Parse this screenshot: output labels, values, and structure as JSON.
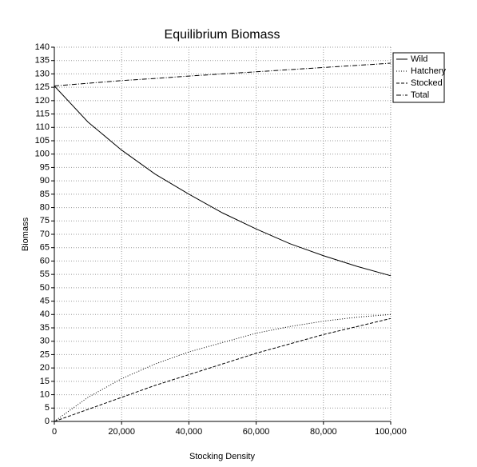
{
  "chart_data": {
    "type": "line",
    "title": "Equilibrium Biomass",
    "x_label": "Stocking Density",
    "y_label": "Biomass",
    "x": [
      0,
      10000,
      20000,
      30000,
      40000,
      50000,
      60000,
      70000,
      80000,
      90000,
      100000
    ],
    "series": [
      {
        "name": "Wild",
        "color": "#000000",
        "line_style": "solid",
        "values": [
          125.5,
          112,
          101.5,
          92.5,
          85,
          78,
          72,
          66.5,
          62,
          58,
          54.5
        ]
      },
      {
        "name": "Hatchery",
        "color": "#000000",
        "line_style": "dotted",
        "values": [
          0,
          9,
          16,
          21.5,
          26,
          29.5,
          33,
          35.5,
          37.5,
          39,
          40
        ]
      },
      {
        "name": "Stocked",
        "color": "#000000",
        "line_style": "dashed",
        "values": [
          0,
          4.5,
          9,
          13.5,
          17.5,
          21.5,
          25.5,
          29,
          32.5,
          35.5,
          38.5
        ]
      },
      {
        "name": "Total",
        "color": "#000000",
        "line_style": "dashdot",
        "values": [
          125.5,
          126.5,
          127.5,
          128.3,
          129.2,
          130,
          130.8,
          131.6,
          132.4,
          133.2,
          134
        ]
      }
    ],
    "xlim": [
      0,
      100000
    ],
    "xticks": [
      0,
      {
        "value": 20000,
        "label": "20,000"
      },
      {
        "value": 40000,
        "label": "40,000"
      },
      {
        "value": 60000,
        "label": "60,000"
      },
      {
        "value": 80000,
        "label": "80,000"
      },
      {
        "value": 100000,
        "label": "100,000"
      }
    ],
    "ylim": [
      0,
      140
    ],
    "yticks": [
      0,
      5,
      10,
      15,
      20,
      25,
      30,
      35,
      40,
      45,
      50,
      55,
      60,
      65,
      70,
      75,
      80,
      85,
      90,
      95,
      100,
      105,
      110,
      115,
      120,
      125,
      130,
      135,
      140
    ],
    "grid": true,
    "legend": "right"
  }
}
